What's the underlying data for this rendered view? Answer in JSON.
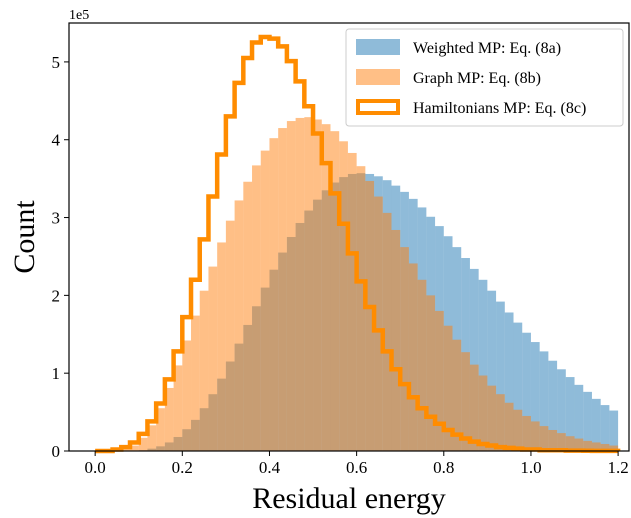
{
  "chart_data": {
    "type": "histogram",
    "xlabel": "Residual energy",
    "ylabel": "Count",
    "y_multiplier": "1e5",
    "xlim": [
      -0.06,
      1.225
    ],
    "ylim": [
      0,
      5.5
    ],
    "xticks": [
      0.0,
      0.2,
      0.4,
      0.6,
      0.8,
      1.0,
      1.2
    ],
    "xtick_labels": [
      "0.0",
      "0.2",
      "0.4",
      "0.6",
      "0.8",
      "1.0",
      "1.2"
    ],
    "yticks": [
      0,
      1,
      2,
      3,
      4,
      5
    ],
    "ytick_labels": [
      "0",
      "1",
      "2",
      "3",
      "4",
      "5"
    ],
    "bin_edges": [
      0.0,
      1.2
    ],
    "num_bins": 60,
    "legend_position": "upper right",
    "series": [
      {
        "name": "Weighted MP: Eq. (8a)",
        "style": "filled",
        "color": "#1f77b4",
        "alpha": 0.5,
        "values": [
          0,
          0,
          0,
          0,
          0,
          0.01,
          0.03,
          0.06,
          0.11,
          0.18,
          0.28,
          0.4,
          0.55,
          0.73,
          0.93,
          1.15,
          1.38,
          1.62,
          1.86,
          2.1,
          2.33,
          2.55,
          2.75,
          2.93,
          3.09,
          3.23,
          3.35,
          3.45,
          3.52,
          3.56,
          3.57,
          3.56,
          3.53,
          3.48,
          3.41,
          3.33,
          3.24,
          3.13,
          3.01,
          2.89,
          2.76,
          2.62,
          2.48,
          2.34,
          2.2,
          2.06,
          1.92,
          1.78,
          1.65,
          1.52,
          1.4,
          1.28,
          1.16,
          1.05,
          0.95,
          0.85,
          0.76,
          0.67,
          0.59,
          0.52
        ]
      },
      {
        "name": "Graph MP: Eq. (8b)",
        "style": "filled",
        "color": "#ff7f0e",
        "alpha": 0.5,
        "values": [
          0,
          0,
          0,
          0.02,
          0.07,
          0.17,
          0.33,
          0.55,
          0.81,
          1.1,
          1.42,
          1.74,
          2.06,
          2.37,
          2.68,
          2.96,
          3.22,
          3.46,
          3.67,
          3.86,
          4.02,
          4.15,
          4.24,
          4.28,
          4.29,
          4.26,
          4.2,
          4.11,
          3.98,
          3.83,
          3.66,
          3.47,
          3.27,
          3.06,
          2.84,
          2.62,
          2.41,
          2.2,
          2.0,
          1.8,
          1.61,
          1.43,
          1.27,
          1.11,
          0.97,
          0.84,
          0.73,
          0.62,
          0.53,
          0.45,
          0.38,
          0.32,
          0.27,
          0.23,
          0.19,
          0.16,
          0.13,
          0.11,
          0.09,
          0.07
        ]
      },
      {
        "name": "Hamiltonians MP: Eq. (8c)",
        "style": "step",
        "color": "#ff8c00",
        "values": [
          0,
          0,
          0.02,
          0.05,
          0.11,
          0.22,
          0.38,
          0.61,
          0.92,
          1.28,
          1.72,
          2.2,
          2.72,
          3.27,
          3.81,
          4.3,
          4.73,
          5.05,
          5.25,
          5.32,
          5.3,
          5.2,
          5.01,
          4.75,
          4.43,
          4.08,
          3.7,
          3.31,
          2.92,
          2.54,
          2.18,
          1.85,
          1.55,
          1.28,
          1.05,
          0.86,
          0.69,
          0.55,
          0.44,
          0.35,
          0.27,
          0.21,
          0.16,
          0.12,
          0.09,
          0.07,
          0.05,
          0.04,
          0.03,
          0.02,
          0.02,
          0.01,
          0.01,
          0.01,
          0.005,
          0.005,
          0.003,
          0.002,
          0.001,
          0.001
        ]
      }
    ]
  }
}
